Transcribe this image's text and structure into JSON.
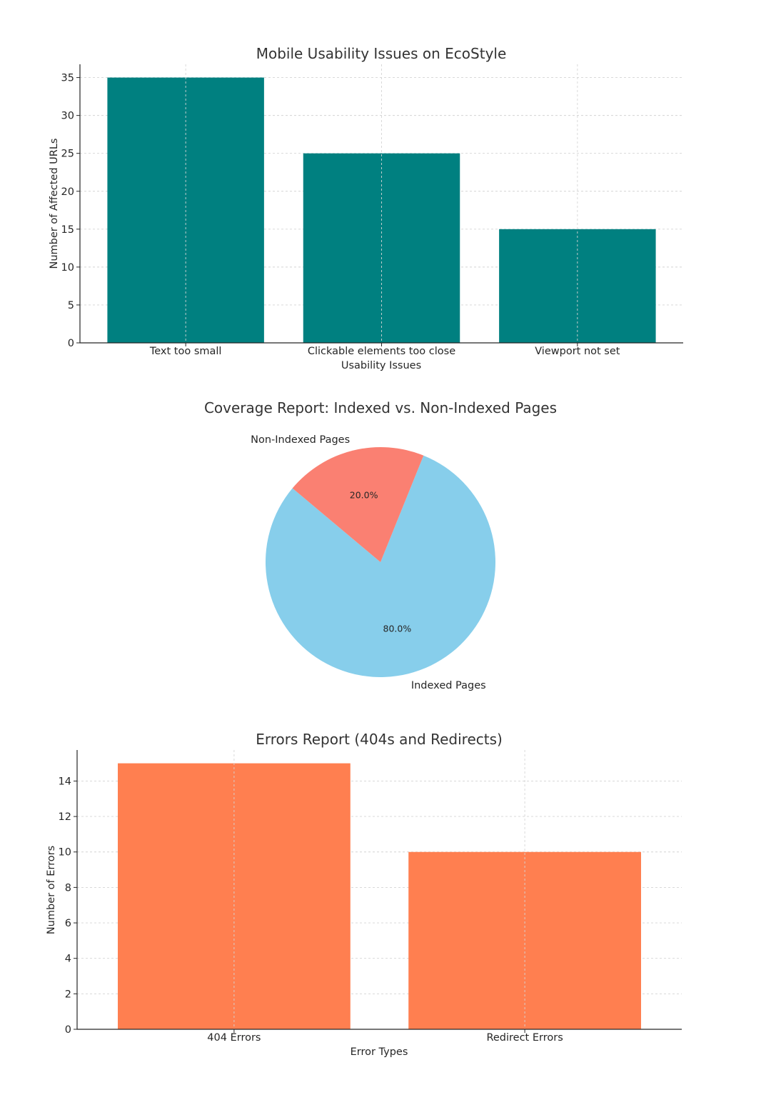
{
  "chart_data": [
    {
      "type": "bar",
      "title": "Mobile Usability Issues on EcoStyle",
      "xlabel": "Usability Issues",
      "ylabel": "Number of Affected URLs",
      "categories": [
        "Text too small",
        "Clickable elements too close",
        "Viewport not set"
      ],
      "values": [
        35,
        25,
        15
      ],
      "yticks": [
        0,
        5,
        10,
        15,
        20,
        25,
        30,
        35
      ],
      "ylim": [
        0,
        36.75
      ],
      "color": "#008080",
      "grid": true
    },
    {
      "type": "pie",
      "title": "Coverage Report: Indexed vs. Non-Indexed Pages",
      "labels": [
        "Indexed Pages",
        "Non-Indexed Pages"
      ],
      "values": [
        80,
        20
      ],
      "autopct": [
        "80.0%",
        "20.0%"
      ],
      "colors": [
        "#87CEEB",
        "#FA8072"
      ]
    },
    {
      "type": "bar",
      "title": "Errors Report (404s and Redirects)",
      "xlabel": "Error Types",
      "ylabel": "Number of Errors",
      "categories": [
        "404 Errors",
        "Redirect Errors"
      ],
      "values": [
        15,
        10
      ],
      "yticks": [
        0,
        2,
        4,
        6,
        8,
        10,
        12,
        14
      ],
      "ylim": [
        0,
        15.75
      ],
      "color": "#FF7F50",
      "grid": true
    }
  ]
}
